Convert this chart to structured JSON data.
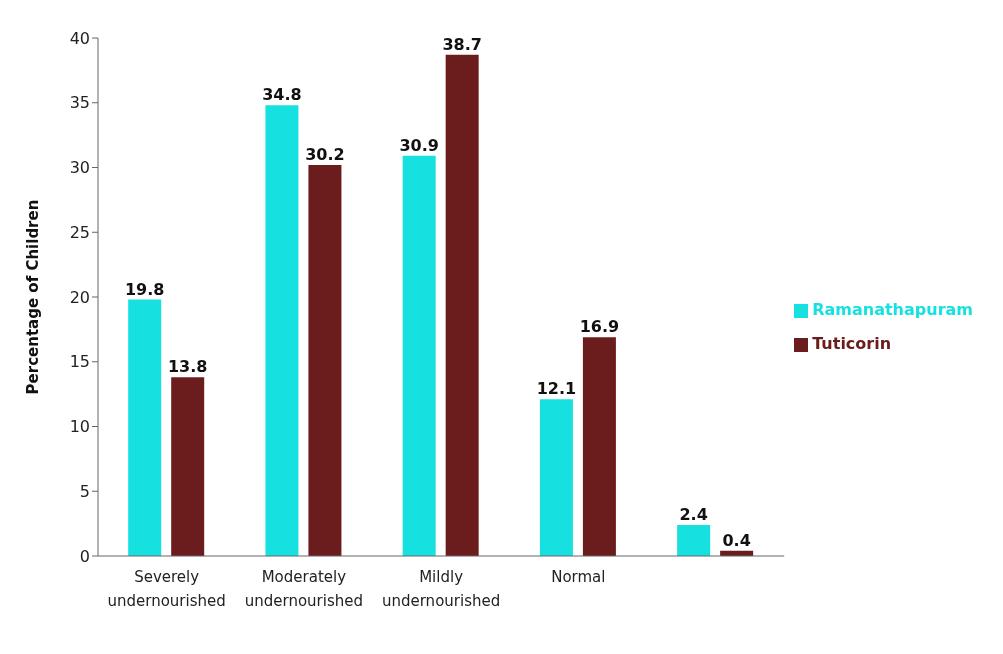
{
  "chart_data": {
    "type": "bar",
    "ylabel": "Percentage of Children",
    "categories": [
      "Severely undernourished",
      "Moderately undernourished",
      "Mildly undernourished",
      "Normal",
      null
    ],
    "series": [
      {
        "name": "Ramanathapuram",
        "color": "#17e0e0",
        "values": [
          19.8,
          34.8,
          30.9,
          12.1,
          2.4
        ]
      },
      {
        "name": "Tuticorin",
        "color": "#6b1c1c",
        "values": [
          13.8,
          30.2,
          38.7,
          16.9,
          0.4
        ]
      }
    ],
    "ylim": [
      0,
      40
    ],
    "yticks": [
      0,
      5,
      10,
      15,
      20,
      25,
      30,
      35,
      40
    ],
    "grid": false,
    "legend": "right",
    "data_labels": true
  }
}
